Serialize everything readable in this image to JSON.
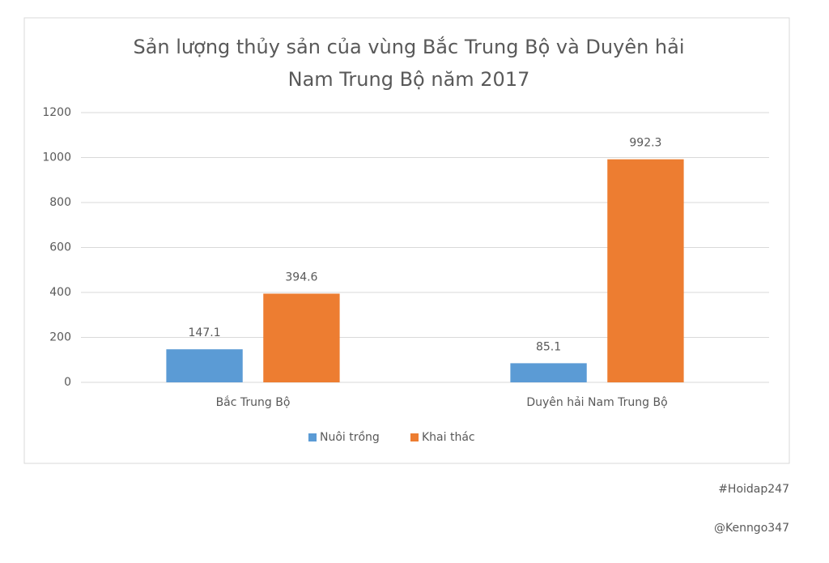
{
  "chart_data": {
    "type": "bar",
    "title": "Sản lượng thủy sản của vùng Bắc Trung Bộ và Duyên hải Nam Trung Bộ năm 2017",
    "categories": [
      "Bắc Trung Bộ",
      "Duyên hải Nam Trung Bộ"
    ],
    "series": [
      {
        "name": "Nuôi trồng",
        "color": "#5b9bd5",
        "values": [
          147.1,
          85.1
        ]
      },
      {
        "name": "Khai thác",
        "color": "#ed7d31",
        "values": [
          394.6,
          992.3
        ]
      }
    ],
    "ylim": [
      0,
      1200
    ],
    "yticks": [
      0,
      200,
      400,
      600,
      800,
      1000,
      1200
    ],
    "grid": true,
    "legend": "bottom",
    "annotations": [
      "#Hoidap247",
      "@Kenngo347"
    ]
  }
}
